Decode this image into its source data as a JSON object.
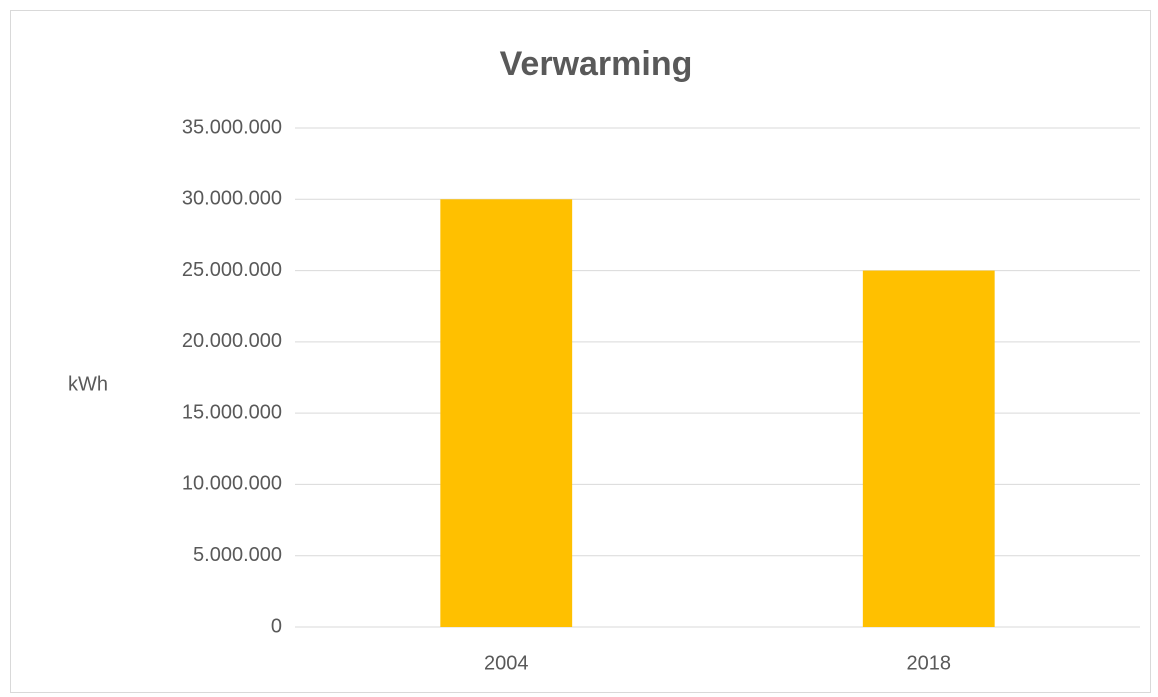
{
  "chart_data": {
    "type": "bar",
    "title": "Verwarming",
    "y_label": "kWh",
    "categories": [
      "2004",
      "2018"
    ],
    "values": [
      30000000,
      25000000
    ],
    "color": "#ffc000",
    "ylim": [
      0,
      35000000
    ],
    "yticks": [
      0,
      {
        "value": 5000000,
        "label": "5.000.000"
      },
      {
        "value": 10000000,
        "label": "10.000.000"
      },
      {
        "value": 15000000,
        "label": "15.000.000"
      },
      {
        "value": 20000000,
        "label": "20.000.000"
      },
      {
        "value": 25000000,
        "label": "25.000.000"
      },
      {
        "value": 30000000,
        "label": "30.000.000"
      },
      {
        "value": 35000000,
        "label": "35.000.000"
      }
    ],
    "grid": true
  }
}
